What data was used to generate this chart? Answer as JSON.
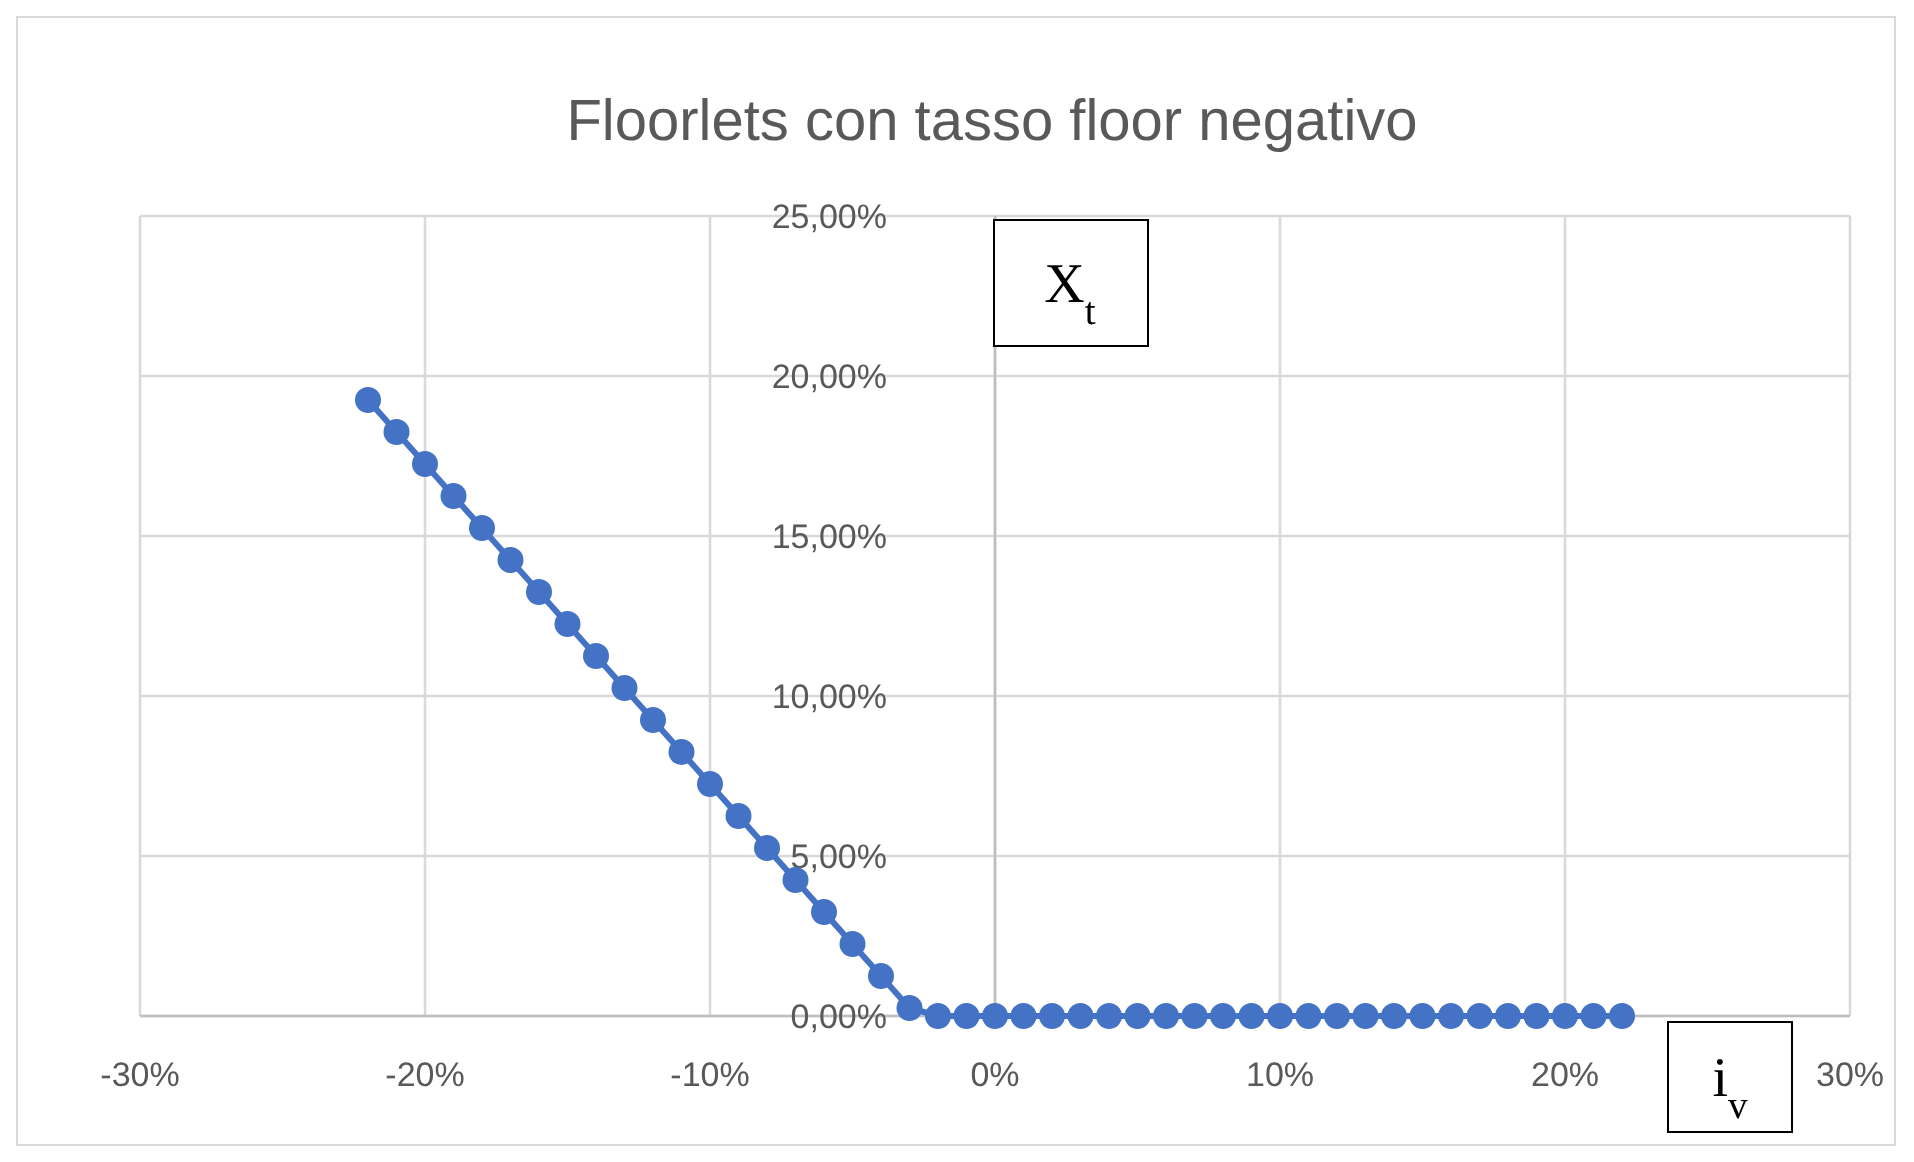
{
  "chart_data": {
    "type": "line",
    "title": "Floorlets con tasso floor negativo",
    "xlabel": "i$_{v}$",
    "ylabel": "X$_{t}$",
    "x": [
      -22,
      -21,
      -20,
      -19,
      -18,
      -17,
      -16,
      -15,
      -14,
      -13,
      -12,
      -11,
      -10,
      -9,
      -8,
      -7,
      -6,
      -5,
      -4,
      -3,
      -2,
      -1,
      0,
      1,
      2,
      3,
      4,
      5,
      6,
      7,
      8,
      9,
      10,
      11,
      12,
      13,
      14,
      15,
      16,
      17,
      18,
      19,
      20,
      21,
      22
    ],
    "series": [
      {
        "color": "#4472c4",
        "values": [
          19.25,
          18.25,
          17.25,
          16.25,
          15.25,
          14.25,
          13.25,
          12.25,
          11.25,
          10.25,
          9.25,
          8.25,
          7.25,
          6.25,
          5.25,
          4.25,
          3.25,
          2.25,
          1.25,
          0.25,
          0,
          0,
          0,
          0,
          0,
          0,
          0,
          0,
          0,
          0,
          0,
          0,
          0,
          0,
          0,
          0,
          0,
          0,
          0,
          0,
          0,
          0,
          0,
          0,
          0
        ]
      }
    ],
    "xlim": [
      -30,
      30
    ],
    "xticks": [
      {
        "value": -30,
        "label": "-30%"
      },
      {
        "value": -20,
        "label": "-20%"
      },
      {
        "value": -10,
        "label": "-10%"
      },
      {
        "value": 0,
        "label": "0%"
      },
      {
        "value": 10,
        "label": "10%"
      },
      {
        "value": 20,
        "label": "20%"
      },
      {
        "value": 30,
        "label": "30%"
      }
    ],
    "ylim": [
      0,
      25
    ],
    "yticks": [
      {
        "value": 0,
        "label": "0,00%"
      },
      {
        "value": 5,
        "label": "5,00%"
      },
      {
        "value": 10,
        "label": "10,00%"
      },
      {
        "value": 15,
        "label": "15,00%"
      },
      {
        "value": 20,
        "label": "20,00%"
      },
      {
        "value": 25,
        "label": "25,00%"
      }
    ],
    "grid": true,
    "marker": "circle",
    "line_style": "solid"
  }
}
